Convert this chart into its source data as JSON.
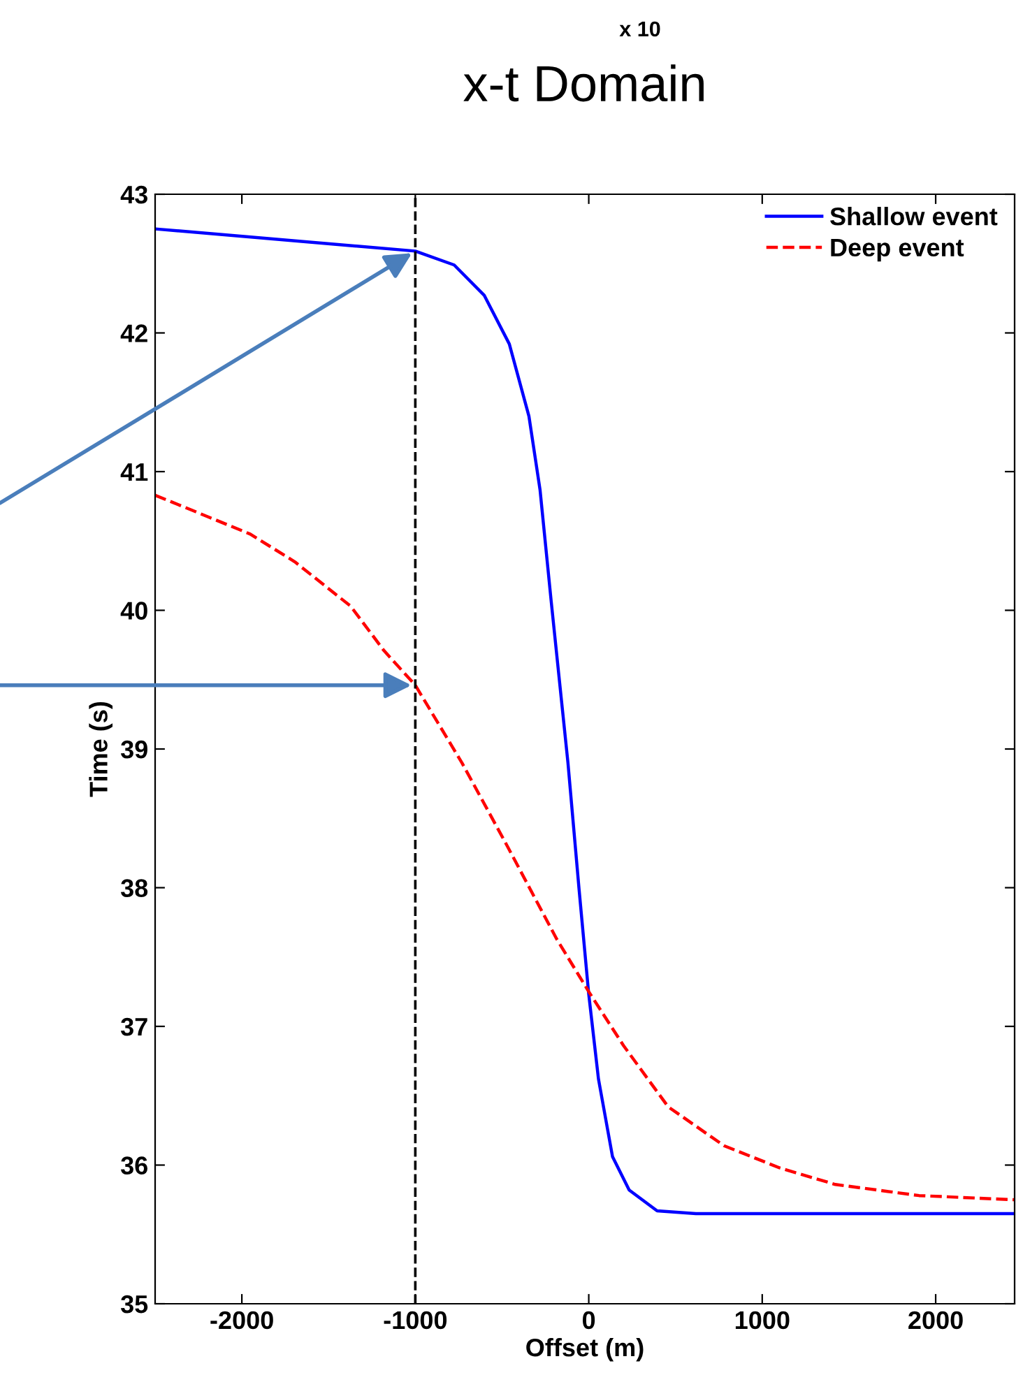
{
  "chart_data": {
    "type": "line",
    "title": "x-t Domain",
    "xlabel": "Offset (m)",
    "ylabel": "Time (s)",
    "annotations": [
      "x 10"
    ],
    "xlim": [
      -2500,
      2455
    ],
    "xticks": [
      -2000,
      -1000,
      0,
      1000,
      2000
    ],
    "ylim": [
      35,
      43
    ],
    "yticks": [
      35,
      36,
      37,
      38,
      39,
      40,
      41,
      42,
      43
    ],
    "grid": false,
    "legend": "top right",
    "ref_lines": [
      {
        "axis": "x",
        "value": -1000,
        "color": "#000000",
        "line_style": "dashed"
      }
    ],
    "series": [
      {
        "name": "Shallow event",
        "color": "#0000ff",
        "line_style": "solid",
        "x": [
          -2500,
          -1000,
          -776,
          -602,
          -458,
          -345,
          -281,
          -217,
          -120,
          -56,
          0,
          56,
          137,
          233,
          394,
          618,
          1500,
          2455
        ],
        "values": [
          42.75,
          42.59,
          42.49,
          42.27,
          41.92,
          41.4,
          40.87,
          40.07,
          38.9,
          37.99,
          37.23,
          36.62,
          36.06,
          35.82,
          35.67,
          35.65,
          35.65,
          35.65
        ]
      },
      {
        "name": "Deep event",
        "color": "#ff0000",
        "line_style": "dashed",
        "x": [
          -2500,
          -2265,
          -1952,
          -1695,
          -1373,
          -1181,
          -1000,
          -731,
          -474,
          -185,
          0,
          201,
          458,
          779,
          1100,
          1422,
          1904,
          2455
        ],
        "values": [
          40.83,
          40.71,
          40.55,
          40.35,
          40.03,
          39.71,
          39.46,
          38.9,
          38.31,
          37.63,
          37.25,
          36.86,
          36.42,
          36.14,
          35.98,
          35.86,
          35.78,
          35.75
        ]
      }
    ]
  }
}
